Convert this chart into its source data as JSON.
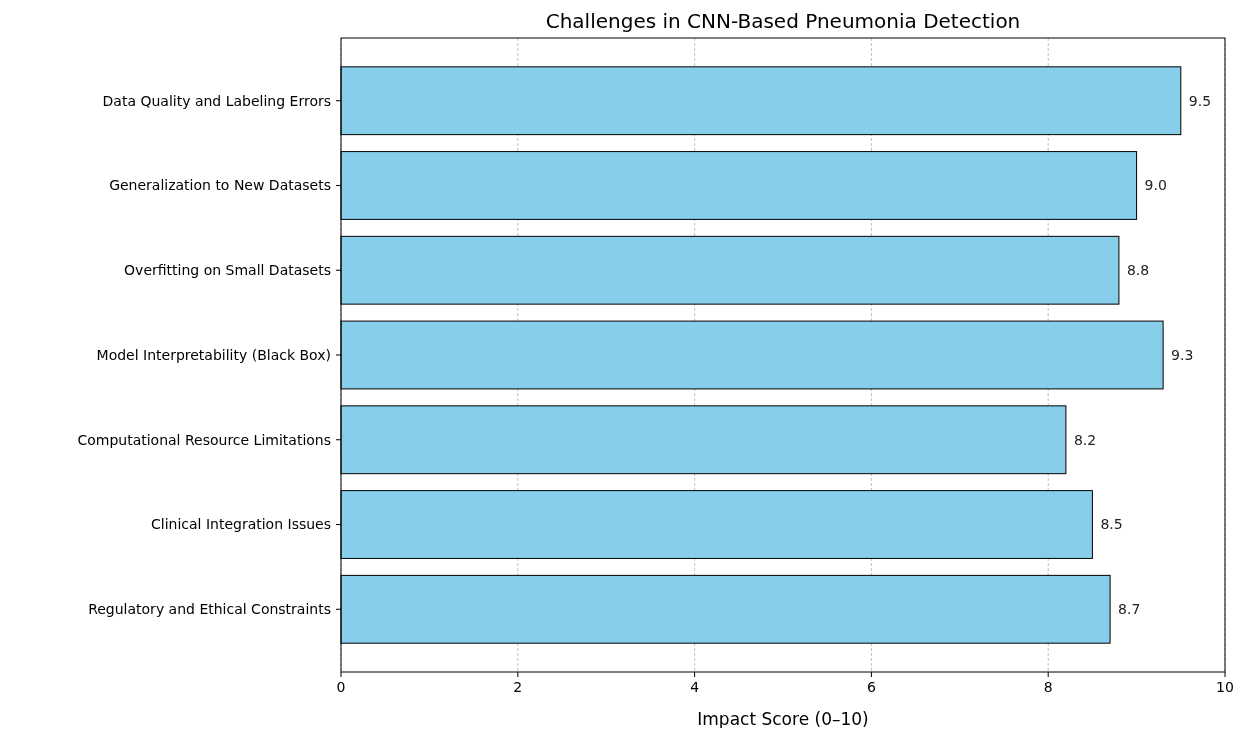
{
  "chart_data": {
    "type": "bar",
    "orientation": "horizontal",
    "title": "Challenges in CNN-Based Pneumonia Detection",
    "xlabel": "Impact Score (0–10)",
    "categories": [
      "Data Quality and Labeling Errors",
      "Generalization to New Datasets",
      "Overfitting on Small Datasets",
      "Model Interpretability (Black Box)",
      "Computational Resource Limitations",
      "Clinical Integration Issues",
      "Regulatory and Ethical Constraints"
    ],
    "values": [
      9.5,
      9.0,
      8.8,
      9.3,
      8.2,
      8.5,
      8.7
    ],
    "value_labels": [
      "9.5",
      "9.0",
      "8.8",
      "9.3",
      "8.2",
      "8.5",
      "8.7"
    ],
    "color": "#87ceeb",
    "xlim": [
      0,
      10
    ],
    "xticks": [
      0,
      2,
      4,
      6,
      8,
      10
    ],
    "grid": "x"
  }
}
